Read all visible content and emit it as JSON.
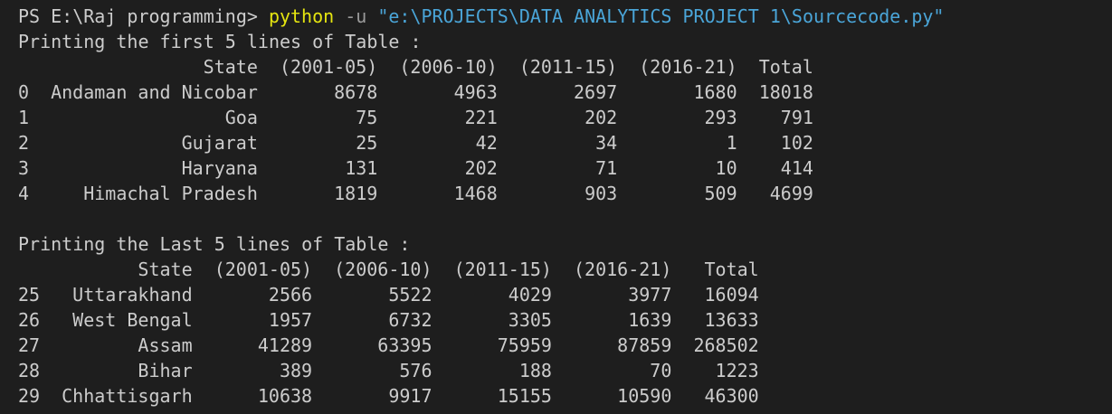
{
  "prompt": {
    "prefix": "PS E:\\Raj programming>",
    "command": "python",
    "flag": "-u",
    "path": "\"e:\\PROJECTS\\DATA ANALYTICS PROJECT 1\\Sourcecode.py\""
  },
  "tables": [
    {
      "caption": "Printing the first 5 lines of Table :",
      "columns": [
        "State",
        "(2001-05)",
        "(2006-10)",
        "(2011-15)",
        "(2016-21)",
        "Total"
      ],
      "rows": [
        [
          0,
          "Andaman and Nicobar",
          8678,
          4963,
          2697,
          1680,
          18018
        ],
        [
          1,
          "Goa",
          75,
          221,
          202,
          293,
          791
        ],
        [
          2,
          "Gujarat",
          25,
          42,
          34,
          1,
          102
        ],
        [
          3,
          "Haryana",
          131,
          202,
          71,
          10,
          414
        ],
        [
          4,
          "Himachal Pradesh",
          1819,
          1468,
          903,
          509,
          4699
        ]
      ]
    },
    {
      "caption": "Printing the Last 5 lines of Table :",
      "columns": [
        "State",
        "(2001-05)",
        "(2006-10)",
        "(2011-15)",
        "(2016-21)",
        "Total"
      ],
      "rows": [
        [
          25,
          "Uttarakhand",
          2566,
          5522,
          4029,
          3977,
          16094
        ],
        [
          26,
          "West Bengal",
          1957,
          6732,
          3305,
          1639,
          13633
        ],
        [
          27,
          "Assam",
          41289,
          63395,
          75959,
          87859,
          268502
        ],
        [
          28,
          "Bihar",
          389,
          576,
          188,
          70,
          1223
        ],
        [
          29,
          "Chhattisgarh",
          10638,
          9917,
          15155,
          10590,
          46300
        ]
      ]
    }
  ]
}
